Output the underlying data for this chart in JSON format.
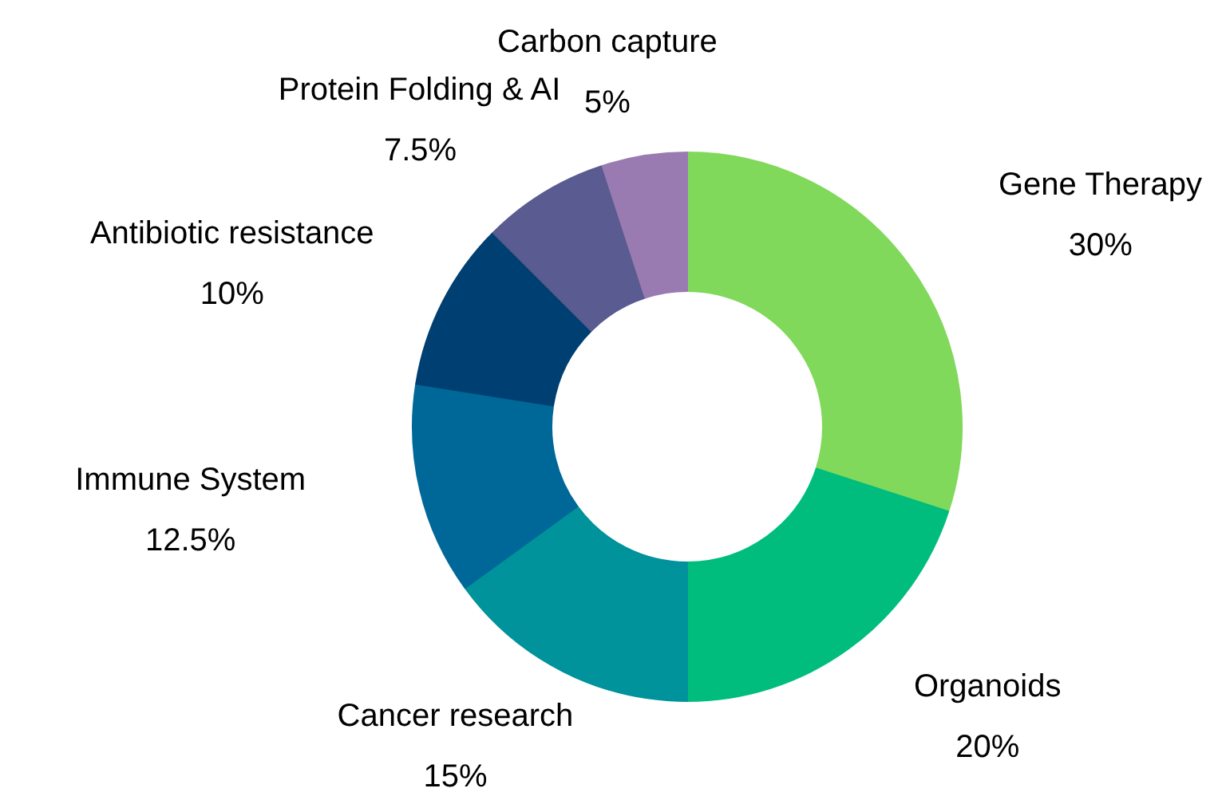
{
  "chart_data": {
    "type": "donut",
    "categories": [
      "Gene Therapy",
      "Organoids",
      "Cancer research",
      "Immune System",
      "Antibiotic resistance",
      "Protein Folding & AI",
      "Carbon capture"
    ],
    "values": [
      30,
      20,
      15,
      12.5,
      10,
      7.5,
      5
    ],
    "value_labels": [
      "30%",
      "20%",
      "15%",
      "12.5%",
      "10%",
      "7.5%",
      "5%"
    ],
    "colors": [
      "#80d95a",
      "#00bd7e",
      "#00939b",
      "#006898",
      "#003f71",
      "#595b91",
      "#9a7bb1"
    ]
  }
}
